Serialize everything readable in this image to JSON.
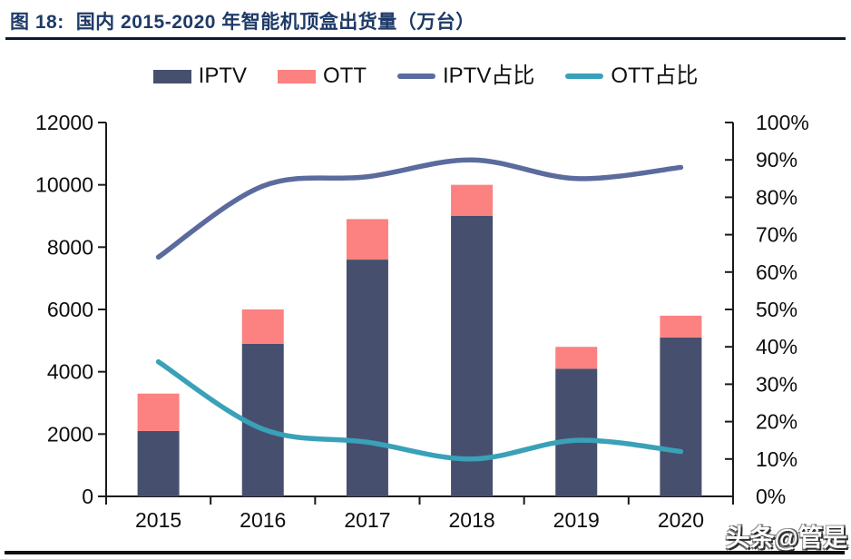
{
  "figure": {
    "label": "图 18:",
    "title": "国内 2015-2020 年智能机顶盒出货量（万台）"
  },
  "legend": {
    "items": [
      {
        "label": "IPTV",
        "swatch": "bar",
        "color": "#46506E"
      },
      {
        "label": "OTT",
        "swatch": "bar",
        "color": "#FC8181"
      },
      {
        "label": "IPTV占比",
        "swatch": "line",
        "color": "#5B6B9E"
      },
      {
        "label": "OTT占比",
        "swatch": "line",
        "color": "#39A1B8"
      }
    ]
  },
  "watermark": "头条@管是",
  "colors": {
    "title_navy": "#1E3A67",
    "axis": "#1a1a1a",
    "rule": "#0e0e0e"
  },
  "chart_data": {
    "type": "combo",
    "title": "国内 2015-2020 年智能机顶盒出货量（万台）",
    "categories": [
      "2015",
      "2016",
      "2017",
      "2018",
      "2019",
      "2020"
    ],
    "series": [
      {
        "name": "IPTV",
        "type": "bar",
        "stacked": true,
        "axis": "left",
        "color": "#46506E",
        "values": [
          2100,
          4900,
          7600,
          9000,
          4100,
          5100
        ]
      },
      {
        "name": "OTT",
        "type": "bar",
        "stacked": true,
        "axis": "left",
        "color": "#FC8181",
        "values": [
          1200,
          1100,
          1300,
          1000,
          700,
          700
        ]
      },
      {
        "name": "IPTV占比",
        "type": "line",
        "axis": "right",
        "color": "#5B6B9E",
        "values": [
          64,
          83,
          85.5,
          90,
          85,
          88
        ]
      },
      {
        "name": "OTT占比",
        "type": "line",
        "axis": "right",
        "color": "#39A1B8",
        "values": [
          36,
          18,
          14.5,
          10,
          15,
          12
        ]
      }
    ],
    "left_axis": {
      "min": 0,
      "max": 12000,
      "step": 2000,
      "tick_labels": [
        "0",
        "2000",
        "4000",
        "6000",
        "8000",
        "10000",
        "12000"
      ]
    },
    "right_axis": {
      "min": 0,
      "max": 100,
      "step": 10,
      "unit": "%",
      "tick_labels": [
        "0%",
        "10%",
        "20%",
        "30%",
        "40%",
        "50%",
        "60%",
        "70%",
        "80%",
        "90%",
        "100%"
      ]
    },
    "legend_position": "top",
    "grid": false
  }
}
